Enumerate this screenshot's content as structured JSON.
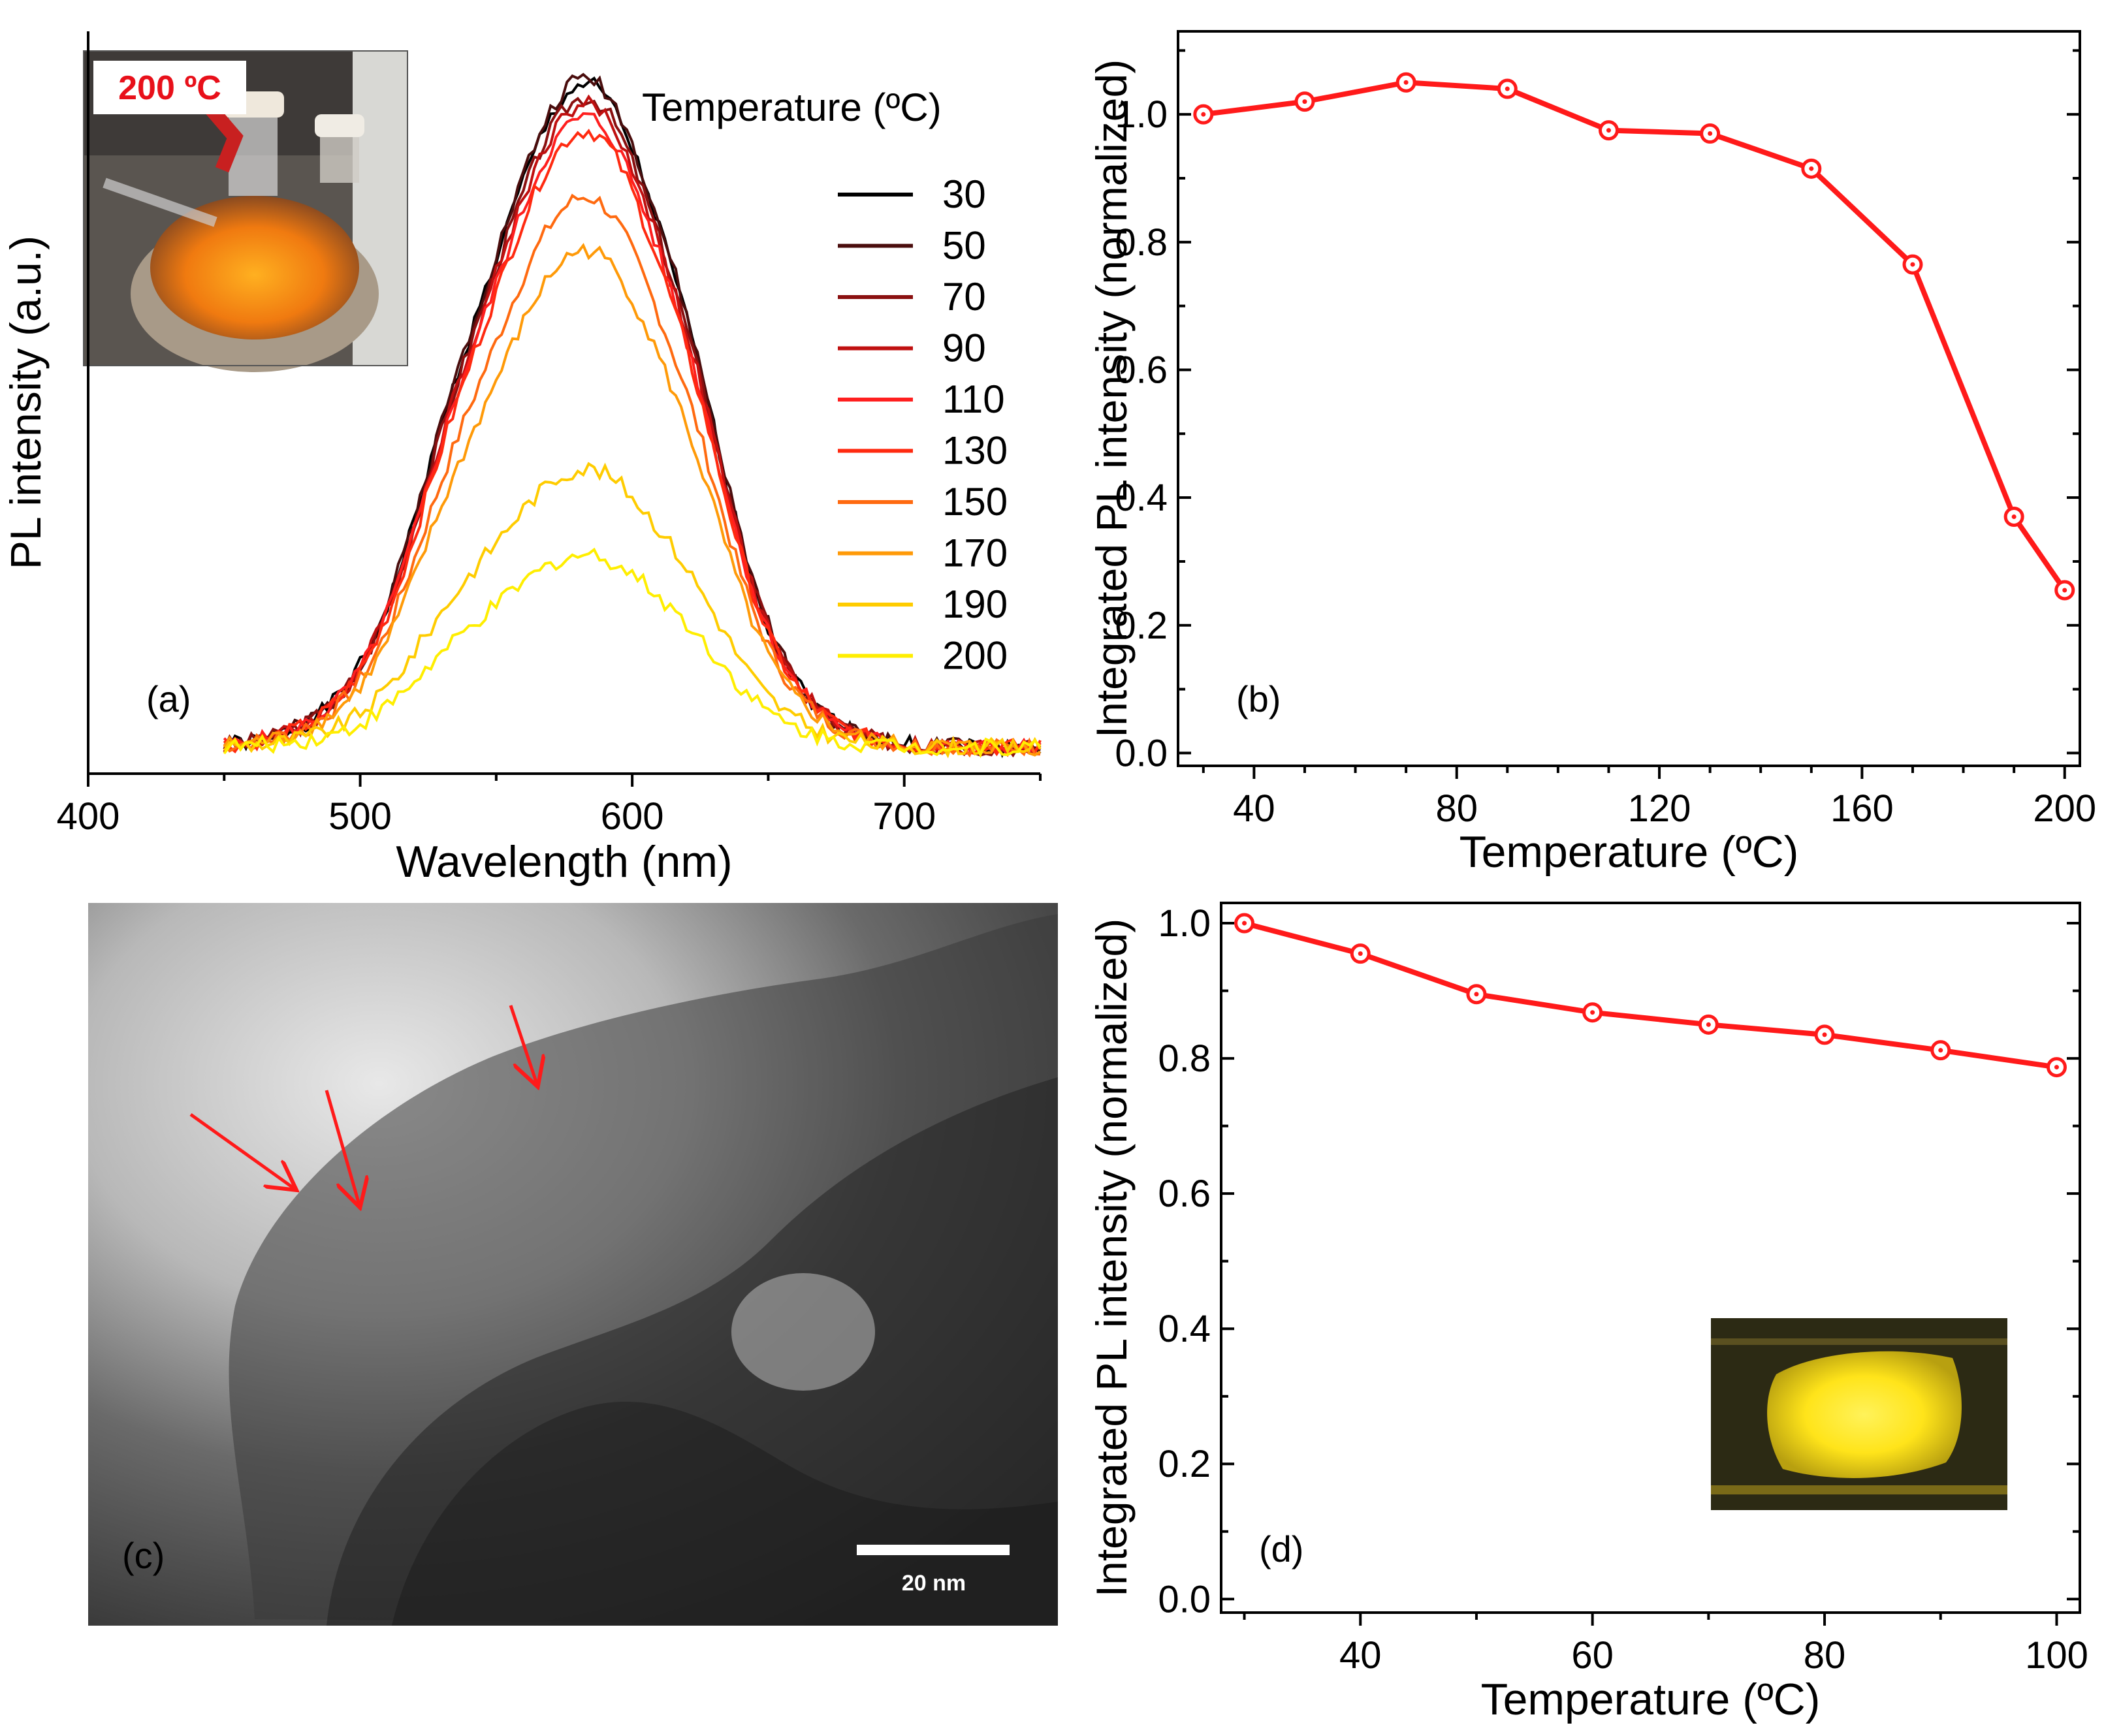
{
  "figure": {
    "panel_a": {
      "panel_label": "(a)",
      "inset_photo_label": "200 ºC",
      "legend_title": "Temperature (ºC)"
    },
    "panel_b": {
      "panel_label": "(b)"
    },
    "panel_c": {
      "panel_label": "(c)",
      "scale_bar_label": "20 nm",
      "description_arrows": 3
    },
    "panel_d": {
      "panel_label": "(d)"
    }
  },
  "colors": {
    "series_b_d": "#ff1a1a",
    "inset_label_red": "#e8101a",
    "spectra": [
      "#000000",
      "#4a0d0d",
      "#8a1010",
      "#c01010",
      "#ff1f1f",
      "#ff2a10",
      "#ff6a10",
      "#ff9a08",
      "#ffcc00",
      "#ffee00"
    ]
  },
  "chart_data": [
    {
      "id": "a",
      "type": "line",
      "title": "",
      "xlabel": "Wavelength (nm)",
      "ylabel": "PL intensity (a.u.)",
      "xlim": [
        400,
        750
      ],
      "ylim": [
        0,
        1.12
      ],
      "xticks": [
        400,
        500,
        600,
        700
      ],
      "yticks": [],
      "legend_title": "Temperature (ºC)",
      "legend_position": "top-right",
      "peak_wavelength": 583,
      "range": [
        450,
        750
      ],
      "series": [
        {
          "name": "30",
          "peak": 1.04
        },
        {
          "name": "50",
          "peak": 1.05
        },
        {
          "name": "70",
          "peak": 1.02
        },
        {
          "name": "90",
          "peak": 1.01
        },
        {
          "name": "110",
          "peak": 0.99
        },
        {
          "name": "130",
          "peak": 0.97
        },
        {
          "name": "150",
          "peak": 0.87
        },
        {
          "name": "170",
          "peak": 0.79
        },
        {
          "name": "190",
          "peak": 0.46
        },
        {
          "name": "200",
          "peak": 0.33
        }
      ]
    },
    {
      "id": "b",
      "type": "line",
      "title": "",
      "xlabel": "Temperature (ºC)",
      "ylabel": "Integrated PL intensity (normalized)",
      "xlim": [
        25,
        203
      ],
      "ylim": [
        -0.02,
        1.13
      ],
      "xticks": [
        40,
        80,
        120,
        160,
        200
      ],
      "yticks": [
        0.0,
        0.2,
        0.4,
        0.6,
        0.8,
        1.0
      ],
      "ytick_labels": [
        "0.0",
        "0.2",
        "0.4",
        "0.6",
        "0.8",
        "1.0"
      ],
      "x": [
        30,
        50,
        70,
        90,
        110,
        130,
        150,
        170,
        190,
        200
      ],
      "values": [
        1.0,
        1.02,
        1.05,
        1.04,
        0.975,
        0.97,
        0.915,
        0.765,
        0.37,
        0.255
      ]
    },
    {
      "id": "d",
      "type": "line",
      "title": "",
      "xlabel": "Temperature (ºC)",
      "ylabel": "Integrated PL intensity (normalized)",
      "xlim": [
        28,
        102
      ],
      "ylim": [
        -0.02,
        1.03
      ],
      "xticks": [
        40,
        60,
        80,
        100
      ],
      "yticks": [
        0.0,
        0.2,
        0.4,
        0.6,
        0.8,
        1.0
      ],
      "ytick_labels": [
        "0.0",
        "0.2",
        "0.4",
        "0.6",
        "0.8",
        "1.0"
      ],
      "x": [
        30,
        40,
        50,
        60,
        70,
        80,
        90,
        100
      ],
      "values": [
        1.0,
        0.955,
        0.895,
        0.868,
        0.85,
        0.835,
        0.812,
        0.787
      ]
    }
  ]
}
